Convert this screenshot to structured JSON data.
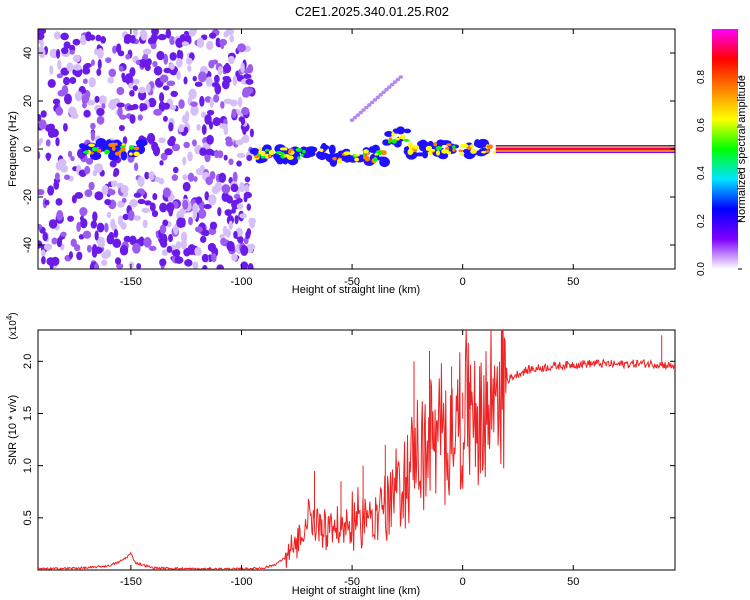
{
  "title": "C2E1.2025.340.01.25.R02",
  "chart_data": [
    {
      "type": "heatmap",
      "name": "spectrogram",
      "xlabel": "Height of straight line (km)",
      "ylabel": "Frequency (Hz)",
      "xlim": [
        -192,
        96
      ],
      "ylim": [
        -50,
        50
      ],
      "xticks": [
        -150,
        -100,
        -50,
        0,
        50
      ],
      "yticks": [
        -40,
        -20,
        0,
        20,
        40
      ],
      "colorbar": {
        "label": "Normalized spectral amplitude",
        "range": [
          0,
          1
        ],
        "ticks": [
          "0.0",
          "0.2",
          "0.4",
          "0.6",
          "0.8"
        ],
        "tick_values": [
          0,
          0.2,
          0.4,
          0.6,
          0.8
        ],
        "colors": [
          "#ffffff",
          "#7f00ff",
          "#0000ff",
          "#00e5ff",
          "#00ff00",
          "#ffff00",
          "#ff8000",
          "#ff0000",
          "#ff00ff"
        ]
      },
      "noise_regions": [
        {
          "x": [
            -192,
            -150
          ],
          "freq": [
            -50,
            50
          ]
        },
        {
          "x": [
            -150,
            -95
          ],
          "freq": [
            -50,
            50
          ]
        }
      ],
      "signal_segments": [
        {
          "x": [
            -172,
            -145
          ],
          "freq": 0,
          "amplitude": 0.5
        },
        {
          "x": [
            -95,
            -60
          ],
          "freq": -2,
          "amplitude": 0.45
        },
        {
          "x": [
            -60,
            -35
          ],
          "freq": -3,
          "amplitude": 0.55
        },
        {
          "x": [
            -35,
            -25
          ],
          "freq": 5,
          "amplitude": 0.5
        },
        {
          "x": [
            -25,
            15
          ],
          "freq": 0,
          "amplitude": 0.6
        },
        {
          "x": [
            15,
            96
          ],
          "freq": 0,
          "amplitude": 0.95
        }
      ],
      "annotations": [
        {
          "x": [
            -50,
            -28
          ],
          "freq": [
            12,
            30
          ],
          "note": "faint diagonal trace"
        }
      ]
    },
    {
      "type": "line",
      "name": "snr",
      "xlabel": "Height of straight line (km)",
      "ylabel": "SNR (10 * v/v)",
      "scale_label": "(x10",
      "scale_exponent": "4",
      "xlim": [
        -192,
        96
      ],
      "ylim": [
        0,
        2.3
      ],
      "xticks": [
        -150,
        -100,
        -50,
        0,
        50
      ],
      "yticks": [
        0.5,
        1.0,
        1.5,
        2.0
      ],
      "ytick_labels": [
        "0.5",
        "1.0",
        "1.5",
        "2.0"
      ],
      "color": "#ee2222",
      "x": [
        -192,
        -170,
        -160,
        -155,
        -152,
        -150,
        -148,
        -140,
        -120,
        -100,
        -90,
        -85,
        -80,
        -75,
        -72,
        -70,
        -68,
        -65,
        -60,
        -55,
        -50,
        -45,
        -40,
        -35,
        -30,
        -25,
        -22,
        -20,
        -18,
        -15,
        -12,
        -10,
        -5,
        0,
        5,
        8,
        10,
        12,
        15,
        20,
        25,
        30,
        40,
        50,
        60,
        70,
        80,
        90,
        96
      ],
      "values": [
        0.01,
        0.02,
        0.04,
        0.08,
        0.12,
        0.16,
        0.07,
        0.02,
        0.01,
        0.01,
        0.02,
        0.05,
        0.12,
        0.22,
        0.3,
        0.45,
        0.55,
        0.4,
        0.45,
        0.38,
        0.45,
        0.5,
        0.55,
        0.6,
        0.75,
        0.9,
        1.1,
        1.2,
        1.05,
        1.25,
        1.15,
        1.3,
        1.35,
        1.45,
        1.6,
        1.3,
        1.5,
        1.55,
        1.75,
        1.82,
        1.88,
        1.92,
        1.95,
        1.97,
        1.98,
        1.97,
        1.98,
        1.97,
        1.95
      ],
      "spike_x": [
        -67,
        -55,
        -45,
        -35,
        -30,
        -25,
        -22,
        -15,
        -10,
        -5,
        0,
        3,
        90
      ],
      "spike_values": [
        0.95,
        0.85,
        1.0,
        1.2,
        1.05,
        1.15,
        2.0,
        2.1,
        1.4,
        1.95,
        1.7,
        1.8,
        2.25
      ]
    }
  ]
}
